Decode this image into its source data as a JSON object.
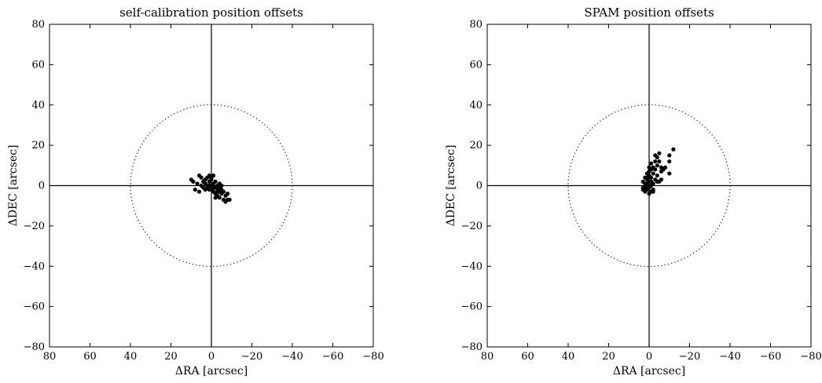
{
  "chart_data": [
    {
      "type": "scatter",
      "title": "self-calibration position offsets",
      "xlabel": "ΔRA [arcsec]",
      "ylabel": "ΔDEC [arcsec]",
      "xlim": [
        80,
        -80
      ],
      "ylim": [
        -80,
        80
      ],
      "xticks": [
        80,
        60,
        40,
        20,
        0,
        -20,
        -40,
        -60,
        -80
      ],
      "yticks": [
        -80,
        -60,
        -40,
        -20,
        0,
        20,
        40,
        60,
        80
      ],
      "xtick_labels": [
        "80",
        "60",
        "40",
        "20",
        "0",
        "−20",
        "−40",
        "−60",
        "−80"
      ],
      "ytick_labels": [
        "−80",
        "−60",
        "−40",
        "−20",
        "0",
        "20",
        "40",
        "60",
        "80"
      ],
      "grid": false,
      "reference_circle_radius": 40,
      "points": [
        [
          10,
          3
        ],
        [
          9,
          2
        ],
        [
          8,
          -2
        ],
        [
          7,
          1
        ],
        [
          6,
          -3
        ],
        [
          6,
          5
        ],
        [
          5,
          4
        ],
        [
          5,
          0
        ],
        [
          4,
          2
        ],
        [
          4,
          -1
        ],
        [
          3,
          3
        ],
        [
          3,
          1
        ],
        [
          3,
          -2
        ],
        [
          2,
          4
        ],
        [
          2,
          0
        ],
        [
          2,
          -1
        ],
        [
          1,
          5
        ],
        [
          1,
          2
        ],
        [
          1,
          -2
        ],
        [
          0,
          3
        ],
        [
          0,
          0
        ],
        [
          0,
          4
        ],
        [
          -1,
          1
        ],
        [
          -1,
          -3
        ],
        [
          -1,
          5
        ],
        [
          -2,
          2
        ],
        [
          -2,
          -1
        ],
        [
          -2,
          -4
        ],
        [
          -3,
          0
        ],
        [
          -3,
          -2
        ],
        [
          -3,
          -5
        ],
        [
          -4,
          1
        ],
        [
          -4,
          -1
        ],
        [
          -4,
          -3
        ],
        [
          -4,
          -6
        ],
        [
          -5,
          -2
        ],
        [
          -5,
          0
        ],
        [
          -5,
          -4
        ],
        [
          -6,
          -3
        ],
        [
          -6,
          -7
        ],
        [
          -7,
          -5
        ],
        [
          -7,
          -8
        ],
        [
          -8,
          -4
        ],
        [
          -8,
          -7
        ],
        [
          -9,
          -7
        ],
        [
          -2,
          -6
        ],
        [
          0,
          -2
        ],
        [
          1,
          0
        ],
        [
          -1,
          -1
        ],
        [
          -3,
          -3
        ]
      ]
    },
    {
      "type": "scatter",
      "title": "SPAM position offsets",
      "xlabel": "ΔRA [arcsec]",
      "ylabel": "ΔDEC [arcsec]",
      "xlim": [
        80,
        -80
      ],
      "ylim": [
        -80,
        80
      ],
      "xticks": [
        80,
        60,
        40,
        20,
        0,
        -20,
        -40,
        -60,
        -80
      ],
      "yticks": [
        -80,
        -60,
        -40,
        -20,
        0,
        20,
        40,
        60,
        80
      ],
      "xtick_labels": [
        "80",
        "60",
        "40",
        "20",
        "0",
        "−20",
        "−40",
        "−60",
        "−80"
      ],
      "ytick_labels": [
        "−80",
        "−60",
        "−40",
        "−20",
        "0",
        "20",
        "40",
        "60",
        "80"
      ],
      "grid": false,
      "reference_circle_radius": 40,
      "points": [
        [
          -12,
          18
        ],
        [
          -10,
          15
        ],
        [
          -10,
          12
        ],
        [
          -10,
          6
        ],
        [
          -8,
          9
        ],
        [
          -7,
          8
        ],
        [
          -6,
          3
        ],
        [
          -6,
          7
        ],
        [
          -5,
          16
        ],
        [
          -5,
          12
        ],
        [
          -5,
          2
        ],
        [
          -4,
          14
        ],
        [
          -4,
          10
        ],
        [
          -4,
          5
        ],
        [
          -3,
          8
        ],
        [
          -3,
          12
        ],
        [
          -3,
          3
        ],
        [
          -2,
          9
        ],
        [
          -2,
          6
        ],
        [
          -2,
          1
        ],
        [
          -2,
          -2
        ],
        [
          -1,
          8
        ],
        [
          -1,
          4
        ],
        [
          -1,
          0
        ],
        [
          -1,
          -3
        ],
        [
          0,
          7
        ],
        [
          0,
          5
        ],
        [
          0,
          2
        ],
        [
          0,
          -1
        ],
        [
          0,
          -4
        ],
        [
          1,
          6
        ],
        [
          1,
          3
        ],
        [
          1,
          0
        ],
        [
          1,
          -2
        ],
        [
          2,
          4
        ],
        [
          2,
          1
        ],
        [
          2,
          -3
        ],
        [
          3,
          2
        ],
        [
          3,
          -1
        ],
        [
          -4,
          2
        ],
        [
          -6,
          9
        ],
        [
          -3,
          15
        ],
        [
          1,
          4
        ],
        [
          0,
          9
        ],
        [
          -1,
          11
        ],
        [
          2,
          -1
        ],
        [
          -2,
          -3
        ],
        [
          1,
          1
        ],
        [
          3,
          -2
        ],
        [
          -1,
          2
        ]
      ]
    }
  ]
}
